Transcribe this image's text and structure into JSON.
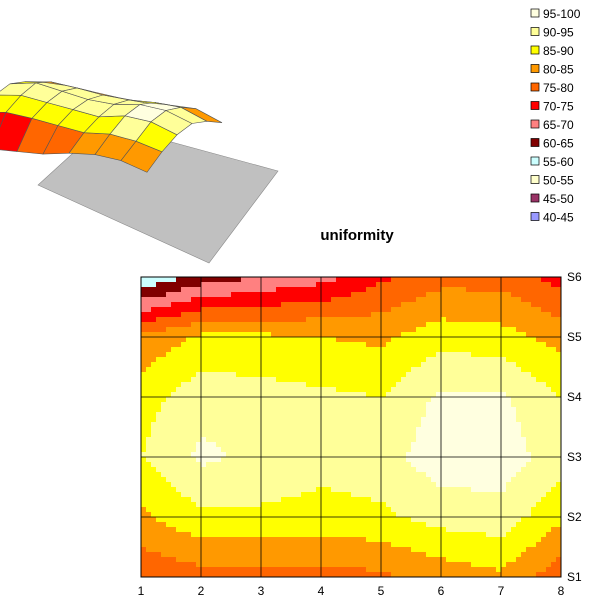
{
  "chart_data": [
    {
      "type": "surface-3d",
      "title": "",
      "x": [
        1,
        2,
        3,
        4,
        5,
        6,
        7,
        8
      ],
      "series_names": [
        "S1",
        "S2",
        "S3",
        "S4",
        "S5",
        "S6"
      ],
      "values": [
        [
          76,
          78,
          78,
          78,
          79,
          82,
          84,
          77
        ],
        [
          84,
          89,
          89,
          88,
          89,
          92,
          93,
          86
        ],
        [
          90,
          96,
          94,
          92,
          93,
          98,
          98,
          92
        ],
        [
          88,
          93,
          92,
          91,
          90,
          96,
          96,
          90
        ],
        [
          81,
          86,
          86,
          85,
          84,
          88,
          87,
          83
        ],
        [
          55,
          62,
          65,
          68,
          74,
          78,
          78,
          73
        ]
      ],
      "floor_color": "#c0c0c0"
    },
    {
      "type": "heatmap",
      "subtype": "contour",
      "title": "uniformity",
      "x": [
        1,
        2,
        3,
        4,
        5,
        6,
        7,
        8
      ],
      "xlim": [
        1,
        8
      ],
      "y_categories": [
        "S1",
        "S2",
        "S3",
        "S4",
        "S5",
        "S6"
      ],
      "y_axis_side": "right",
      "grid": true,
      "values": [
        [
          76,
          78,
          78,
          78,
          79,
          82,
          84,
          77
        ],
        [
          84,
          89,
          89,
          88,
          89,
          92,
          93,
          86
        ],
        [
          90,
          96,
          94,
          92,
          93,
          98,
          98,
          92
        ],
        [
          88,
          93,
          92,
          91,
          90,
          96,
          96,
          90
        ],
        [
          81,
          86,
          86,
          85,
          84,
          88,
          87,
          83
        ],
        [
          55,
          62,
          65,
          68,
          74,
          78,
          78,
          73
        ]
      ],
      "legend": {
        "position": "top-right",
        "entries": [
          {
            "label": "95-100",
            "color": "#ffffe0"
          },
          {
            "label": "90-95",
            "color": "#ffff99"
          },
          {
            "label": "85-90",
            "color": "#ffff00"
          },
          {
            "label": "80-85",
            "color": "#ff9900"
          },
          {
            "label": "75-80",
            "color": "#ff6600"
          },
          {
            "label": "70-75",
            "color": "#ff0000"
          },
          {
            "label": "65-70",
            "color": "#ff8080"
          },
          {
            "label": "60-65",
            "color": "#800000"
          },
          {
            "label": "55-60",
            "color": "#ccffff"
          },
          {
            "label": "50-55",
            "color": "#ffffcc"
          },
          {
            "label": "45-50",
            "color": "#993366"
          },
          {
            "label": "40-45",
            "color": "#9999ff"
          }
        ]
      }
    }
  ]
}
